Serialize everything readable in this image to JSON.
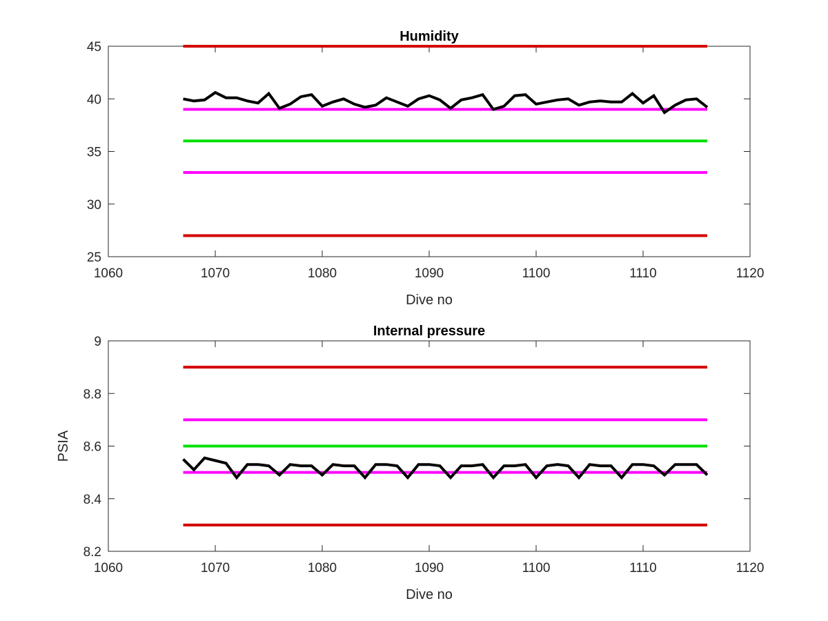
{
  "chart_data": [
    {
      "type": "line",
      "title": "Humidity",
      "xlabel": "Dive no",
      "ylabel": "",
      "xlim": [
        1060,
        1120
      ],
      "ylim": [
        25,
        45
      ],
      "xticks": [
        1060,
        1070,
        1080,
        1090,
        1100,
        1110,
        1120
      ],
      "yticks": [
        25,
        30,
        35,
        40,
        45
      ],
      "grid": false,
      "thresholds": [
        {
          "value": 45,
          "color": "#d40000",
          "x": [
            1067,
            1116
          ]
        },
        {
          "value": 39,
          "color": "#ff00ff",
          "x": [
            1067,
            1116
          ]
        },
        {
          "value": 36,
          "color": "#00e000",
          "x": [
            1067,
            1116
          ]
        },
        {
          "value": 33,
          "color": "#ff00ff",
          "x": [
            1067,
            1116
          ]
        },
        {
          "value": 27,
          "color": "#d40000",
          "x": [
            1067,
            1116
          ]
        }
      ],
      "series": [
        {
          "color": "#000000",
          "x": [
            1067,
            1068,
            1069,
            1070,
            1071,
            1072,
            1073,
            1074,
            1075,
            1076,
            1077,
            1078,
            1079,
            1080,
            1081,
            1082,
            1083,
            1084,
            1085,
            1086,
            1087,
            1088,
            1089,
            1090,
            1091,
            1092,
            1093,
            1094,
            1095,
            1096,
            1097,
            1098,
            1099,
            1100,
            1101,
            1102,
            1103,
            1104,
            1105,
            1106,
            1107,
            1108,
            1109,
            1110,
            1111,
            1112,
            1113,
            1114,
            1115,
            1116
          ],
          "values": [
            40.0,
            39.8,
            39.9,
            40.6,
            40.1,
            40.1,
            39.8,
            39.6,
            40.5,
            39.1,
            39.5,
            40.2,
            40.4,
            39.3,
            39.7,
            40.0,
            39.5,
            39.2,
            39.4,
            40.1,
            39.7,
            39.3,
            40.0,
            40.3,
            39.9,
            39.1,
            39.9,
            40.1,
            40.4,
            39.0,
            39.3,
            40.3,
            40.4,
            39.5,
            39.7,
            39.9,
            40.0,
            39.4,
            39.7,
            39.8,
            39.7,
            39.7,
            40.5,
            39.6,
            40.3,
            38.7,
            39.4,
            39.9,
            40.0,
            39.2
          ]
        }
      ]
    },
    {
      "type": "line",
      "title": "Internal pressure",
      "xlabel": "Dive no",
      "ylabel": "PSIA",
      "xlim": [
        1060,
        1120
      ],
      "ylim": [
        8.2,
        9
      ],
      "xticks": [
        1060,
        1070,
        1080,
        1090,
        1100,
        1110,
        1120
      ],
      "yticks": [
        8.2,
        8.4,
        8.6,
        8.8,
        9
      ],
      "grid": false,
      "thresholds": [
        {
          "value": 8.9,
          "color": "#d40000",
          "x": [
            1067,
            1116
          ]
        },
        {
          "value": 8.7,
          "color": "#ff00ff",
          "x": [
            1067,
            1116
          ]
        },
        {
          "value": 8.6,
          "color": "#00e000",
          "x": [
            1067,
            1116
          ]
        },
        {
          "value": 8.5,
          "color": "#ff00ff",
          "x": [
            1067,
            1116
          ]
        },
        {
          "value": 8.3,
          "color": "#d40000",
          "x": [
            1067,
            1116
          ]
        }
      ],
      "series": [
        {
          "color": "#000000",
          "x": [
            1067,
            1068,
            1069,
            1070,
            1071,
            1072,
            1073,
            1074,
            1075,
            1076,
            1077,
            1078,
            1079,
            1080,
            1081,
            1082,
            1083,
            1084,
            1085,
            1086,
            1087,
            1088,
            1089,
            1090,
            1091,
            1092,
            1093,
            1094,
            1095,
            1096,
            1097,
            1098,
            1099,
            1100,
            1101,
            1102,
            1103,
            1104,
            1105,
            1106,
            1107,
            1108,
            1109,
            1110,
            1111,
            1112,
            1113,
            1114,
            1115,
            1116
          ],
          "values": [
            8.55,
            8.51,
            8.555,
            8.545,
            8.535,
            8.48,
            8.53,
            8.53,
            8.525,
            8.49,
            8.53,
            8.525,
            8.525,
            8.49,
            8.53,
            8.525,
            8.525,
            8.48,
            8.53,
            8.53,
            8.525,
            8.48,
            8.53,
            8.53,
            8.525,
            8.48,
            8.525,
            8.525,
            8.53,
            8.48,
            8.525,
            8.525,
            8.53,
            8.48,
            8.525,
            8.53,
            8.525,
            8.48,
            8.53,
            8.525,
            8.525,
            8.48,
            8.53,
            8.53,
            8.525,
            8.49,
            8.53,
            8.53,
            8.53,
            8.49
          ]
        }
      ]
    }
  ]
}
